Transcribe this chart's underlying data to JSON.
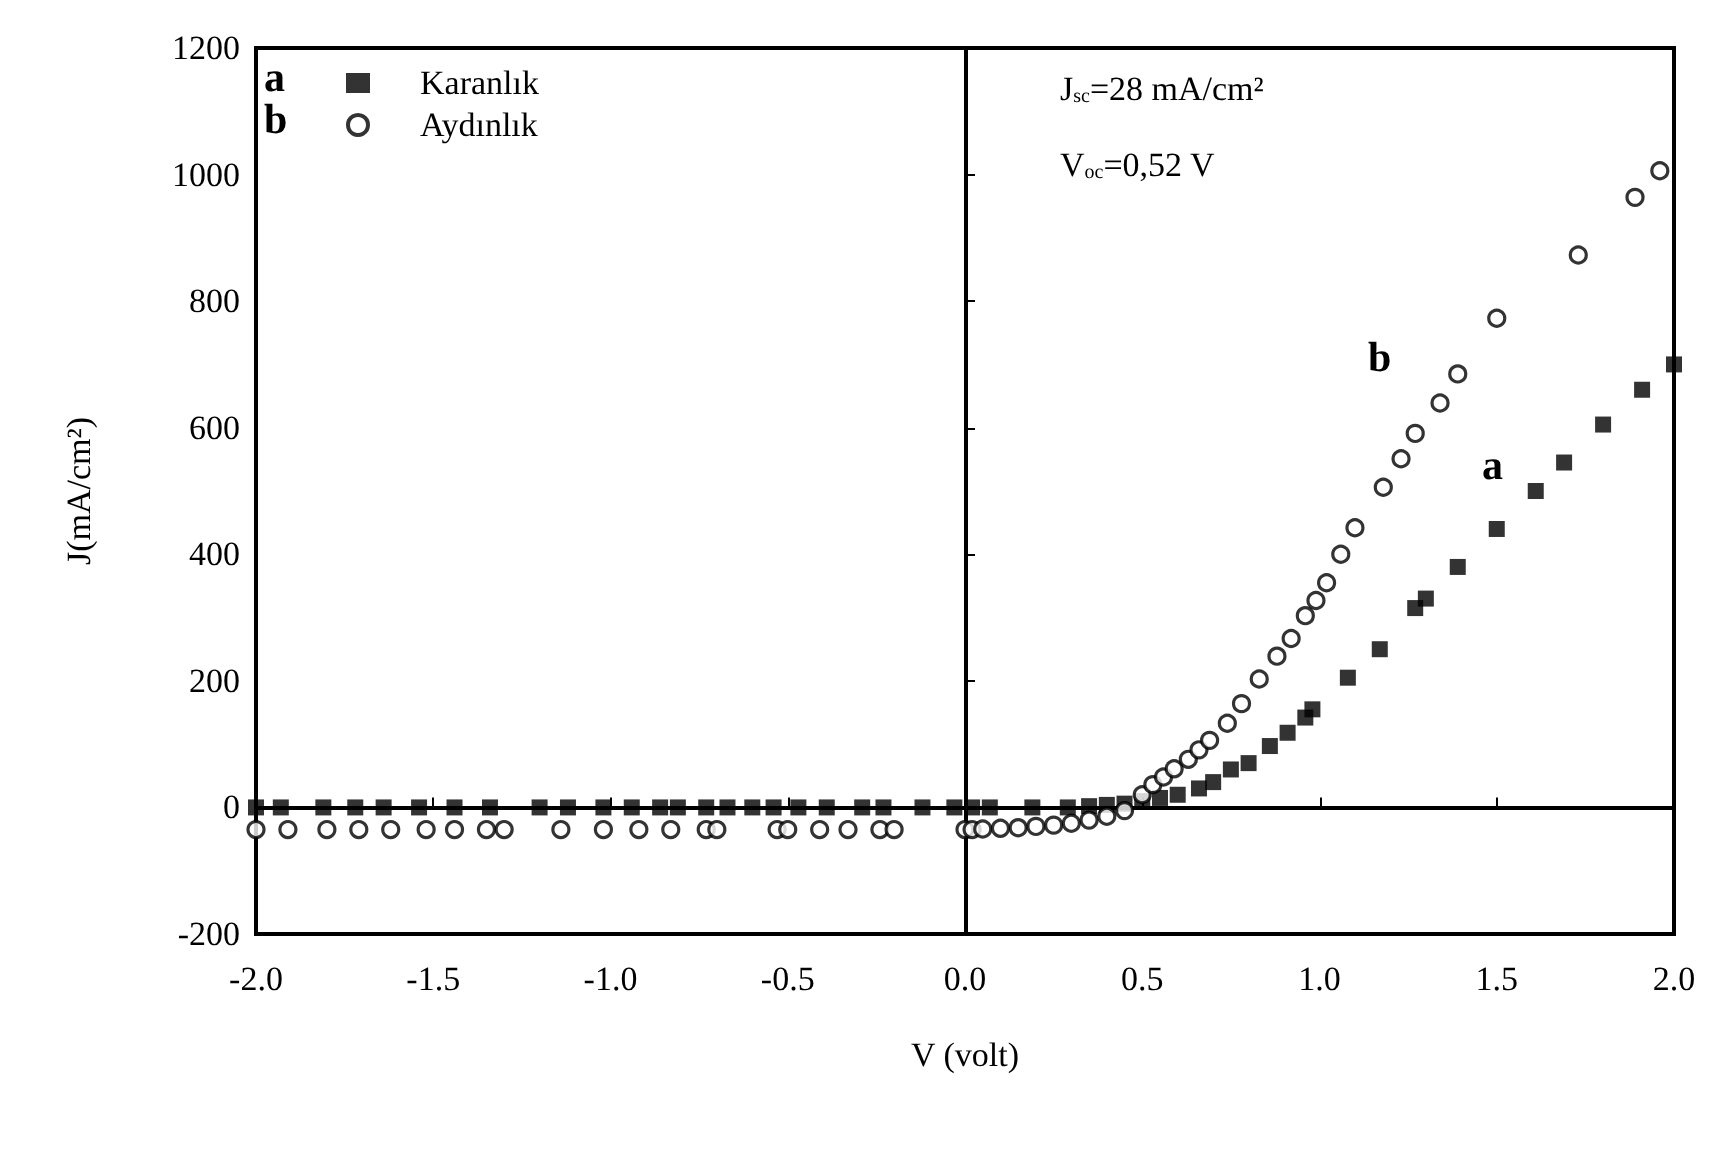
{
  "chart_data": {
    "type": "scatter",
    "xlabel": "V (volt)",
    "ylabel": "J(mA/cm²)",
    "xlim": [
      -2,
      2
    ],
    "xticks": [
      {
        "value": -2,
        "label": "-2.0"
      },
      {
        "value": -1.5,
        "label": "-1.5"
      },
      {
        "value": -1,
        "label": "-1.0"
      },
      {
        "value": -0.5,
        "label": "-0.5"
      },
      {
        "value": 0,
        "label": "0.0"
      },
      {
        "value": 0.5,
        "label": "0.5"
      },
      {
        "value": 1,
        "label": "1.0"
      },
      {
        "value": 1.5,
        "label": "1.5"
      },
      {
        "value": 2,
        "label": "2.0"
      }
    ],
    "ylim": [
      -200,
      1200
    ],
    "yticks": [
      -200,
      0,
      200,
      400,
      600,
      800,
      1000,
      1200
    ],
    "legend": "top left",
    "series": [
      {
        "name": "Karanlık",
        "color": "#000000",
        "marker": "square",
        "x": [
          -2.0,
          -1.93,
          -1.81,
          -1.72,
          -1.64,
          -1.54,
          -1.44,
          -1.34,
          -1.2,
          -1.12,
          -1.02,
          -0.94,
          -0.86,
          -0.81,
          -0.73,
          -0.67,
          -0.6,
          -0.54,
          -0.47,
          -0.39,
          -0.29,
          -0.23,
          -0.12,
          -0.03,
          0.02,
          0.07,
          0.19,
          0.29,
          0.35,
          0.4,
          0.45,
          0.5,
          0.55,
          0.6,
          0.66,
          0.7,
          0.75,
          0.8,
          0.86,
          0.91,
          0.96,
          0.98,
          1.08,
          1.17,
          1.27,
          1.3,
          1.39,
          1.5,
          1.61,
          1.69,
          1.8,
          1.91,
          2.0
        ],
        "values": [
          0,
          0,
          0,
          0,
          0,
          0,
          0,
          0,
          0,
          0,
          0,
          0,
          0,
          0,
          0,
          0,
          0,
          0,
          0,
          0,
          0,
          0,
          0,
          0,
          0,
          0,
          0,
          0,
          2,
          4,
          6,
          10,
          15,
          20,
          30,
          40,
          60,
          70,
          97,
          118,
          142,
          155,
          205,
          250,
          315,
          330,
          380,
          440,
          500,
          545,
          605,
          660,
          700
        ]
      },
      {
        "name": "Aydınlık",
        "color": "#000000",
        "marker": "circle",
        "x": [
          -2.0,
          -1.91,
          -1.8,
          -1.71,
          -1.62,
          -1.52,
          -1.44,
          -1.35,
          -1.3,
          -1.14,
          -1.02,
          -0.92,
          -0.83,
          -0.73,
          -0.7,
          -0.53,
          -0.5,
          -0.41,
          -0.33,
          -0.24,
          -0.2,
          0.0,
          0.02,
          0.05,
          0.1,
          0.15,
          0.2,
          0.25,
          0.3,
          0.35,
          0.4,
          0.45,
          0.5,
          0.53,
          0.56,
          0.59,
          0.63,
          0.66,
          0.69,
          0.74,
          0.78,
          0.83,
          0.88,
          0.92,
          0.96,
          0.99,
          1.02,
          1.06,
          1.1,
          1.18,
          1.23,
          1.27,
          1.34,
          1.39,
          1.5,
          1.73,
          1.89,
          1.96
        ],
        "values": [
          -35,
          -35,
          -35,
          -35,
          -35,
          -35,
          -35,
          -35,
          -35,
          -35,
          -35,
          -35,
          -35,
          -35,
          -35,
          -35,
          -35,
          -35,
          -35,
          -35,
          -35,
          -35,
          -35,
          -34,
          -33,
          -32,
          -30,
          -28,
          -25,
          -20,
          -14,
          -5,
          20,
          36,
          48,
          61,
          76,
          91,
          106,
          133,
          164,
          203,
          239,
          267,
          303,
          327,
          355,
          400,
          442,
          506,
          551,
          591,
          639,
          685,
          773,
          873,
          964,
          1006
        ]
      }
    ],
    "annotations": [
      "J$_{sc}$=28 mA/cm²",
      "V$_{oc}$=0,52 V",
      "a",
      "b",
      "a",
      "b"
    ]
  }
}
